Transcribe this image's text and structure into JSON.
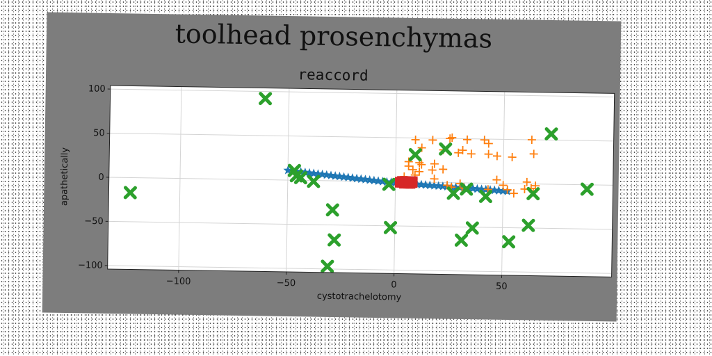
{
  "figure_title": "toolhead prosenchymas",
  "chart_data": {
    "type": "scatter",
    "title": "reaccord",
    "xlabel": "cystotrachelotomy",
    "ylabel": "apathetically",
    "xlim": [
      -133,
      101
    ],
    "ylim": [
      -104,
      104
    ],
    "xticks": [
      -100,
      -50,
      0,
      50
    ],
    "yticks": [
      -100,
      -50,
      0,
      50,
      100
    ],
    "tick_labels_x": [
      "−100",
      "−50",
      "0",
      "50"
    ],
    "tick_labels_y": [
      "−100",
      "−50",
      "0",
      "50",
      "100"
    ],
    "grid": true,
    "legend": "none",
    "series": [
      {
        "marker": "star",
        "color": "#1f77b4",
        "points": [
          [
            -50,
            11
          ],
          [
            -48,
            10.5
          ],
          [
            -46,
            10
          ],
          [
            -44,
            9.5
          ],
          [
            -42,
            9
          ],
          [
            -40,
            8.5
          ],
          [
            -38,
            8
          ],
          [
            -36,
            7.5
          ],
          [
            -34,
            7
          ],
          [
            -32,
            6.5
          ],
          [
            -30,
            6
          ],
          [
            -28,
            5.5
          ],
          [
            -26,
            5
          ],
          [
            -24,
            4.5
          ],
          [
            -22,
            4
          ],
          [
            -20,
            3.5
          ],
          [
            -18,
            3
          ],
          [
            -16,
            2.5
          ],
          [
            -14,
            2
          ],
          [
            -12,
            1.5
          ],
          [
            -10,
            1
          ],
          [
            -8,
            0.5
          ],
          [
            -6,
            0
          ],
          [
            -4,
            -0.3
          ],
          [
            -2,
            -0.6
          ],
          [
            0,
            -1
          ],
          [
            2,
            -1.3
          ],
          [
            4,
            -1.6
          ],
          [
            6,
            -1.9
          ],
          [
            8,
            -2.2
          ],
          [
            10,
            -2.5
          ],
          [
            12,
            -2.8
          ],
          [
            14,
            -3.1
          ],
          [
            16,
            -3.4
          ],
          [
            18,
            -3.7
          ],
          [
            20,
            -4
          ],
          [
            22,
            -4.3
          ],
          [
            24,
            -4.6
          ],
          [
            26,
            -4.9
          ],
          [
            28,
            -5.2
          ],
          [
            30,
            -5.5
          ],
          [
            32,
            -5.8
          ],
          [
            34,
            -6.1
          ],
          [
            36,
            -6.4
          ],
          [
            38,
            -6.7
          ],
          [
            40,
            -7
          ],
          [
            42,
            -7.3
          ],
          [
            44,
            -7.6
          ],
          [
            46,
            -7.9
          ],
          [
            48,
            -8.2
          ],
          [
            50,
            -8.5
          ],
          [
            52,
            -8.8
          ]
        ]
      },
      {
        "marker": "plus",
        "color": "#ff7f0e",
        "points": [
          [
            9,
            48
          ],
          [
            17,
            48
          ],
          [
            25,
            50
          ],
          [
            26,
            51
          ],
          [
            33,
            49
          ],
          [
            41,
            49
          ],
          [
            43,
            45
          ],
          [
            12,
            39
          ],
          [
            22,
            37
          ],
          [
            29,
            34
          ],
          [
            31,
            37
          ],
          [
            35,
            33
          ],
          [
            43,
            33
          ],
          [
            47,
            31
          ],
          [
            54,
            30
          ],
          [
            64,
            34
          ],
          [
            63,
            50
          ],
          [
            6,
            23
          ],
          [
            11,
            22
          ],
          [
            12,
            20
          ],
          [
            18,
            21
          ],
          [
            6,
            18
          ],
          [
            8,
            14
          ],
          [
            11,
            12
          ],
          [
            17,
            14
          ],
          [
            22,
            15
          ],
          [
            9,
            8
          ],
          [
            18,
            4
          ],
          [
            30,
            -1
          ],
          [
            31,
            -6
          ],
          [
            43,
            -7
          ],
          [
            47,
            4
          ],
          [
            50,
            -2
          ],
          [
            52,
            -7
          ],
          [
            55,
            -11
          ],
          [
            60,
            -6
          ],
          [
            61,
            2
          ],
          [
            63,
            -5
          ],
          [
            64,
            -9
          ],
          [
            65,
            -2
          ],
          [
            24,
            -3
          ],
          [
            26,
            -5
          ],
          [
            4,
            6
          ],
          [
            5,
            2
          ],
          [
            7,
            -2
          ]
        ]
      },
      {
        "marker": "x",
        "color": "#2ca02c",
        "points": [
          [
            -61,
            92
          ],
          [
            -123,
            -17
          ],
          [
            -47,
            11
          ],
          [
            -46,
            5
          ],
          [
            -44,
            3
          ],
          [
            -38,
            -1
          ],
          [
            -29,
            -33
          ],
          [
            -28,
            -67
          ],
          [
            -31,
            -97
          ],
          [
            -3,
            -3
          ],
          [
            -2,
            -52
          ],
          [
            9,
            31
          ],
          [
            23,
            38
          ],
          [
            27,
            -12
          ],
          [
            31,
            -65
          ],
          [
            36,
            -51
          ],
          [
            42,
            -15
          ],
          [
            53,
            -66
          ],
          [
            62,
            -47
          ],
          [
            64,
            -11
          ],
          [
            72,
            57
          ],
          [
            89,
            -5
          ],
          [
            33,
            -7
          ]
        ]
      },
      {
        "marker": "square",
        "color": "#d62728",
        "points": [
          [
            2,
            0
          ],
          [
            3,
            -1
          ],
          [
            4,
            0
          ],
          [
            5,
            1
          ],
          [
            6,
            -1
          ],
          [
            7,
            0
          ],
          [
            8,
            -1
          ],
          [
            3,
            1
          ],
          [
            5,
            -1
          ],
          [
            6,
            1
          ],
          [
            7,
            -2
          ],
          [
            4,
            -2
          ],
          [
            8,
            1
          ],
          [
            2,
            -1
          ],
          [
            6,
            -2
          ]
        ]
      }
    ]
  }
}
